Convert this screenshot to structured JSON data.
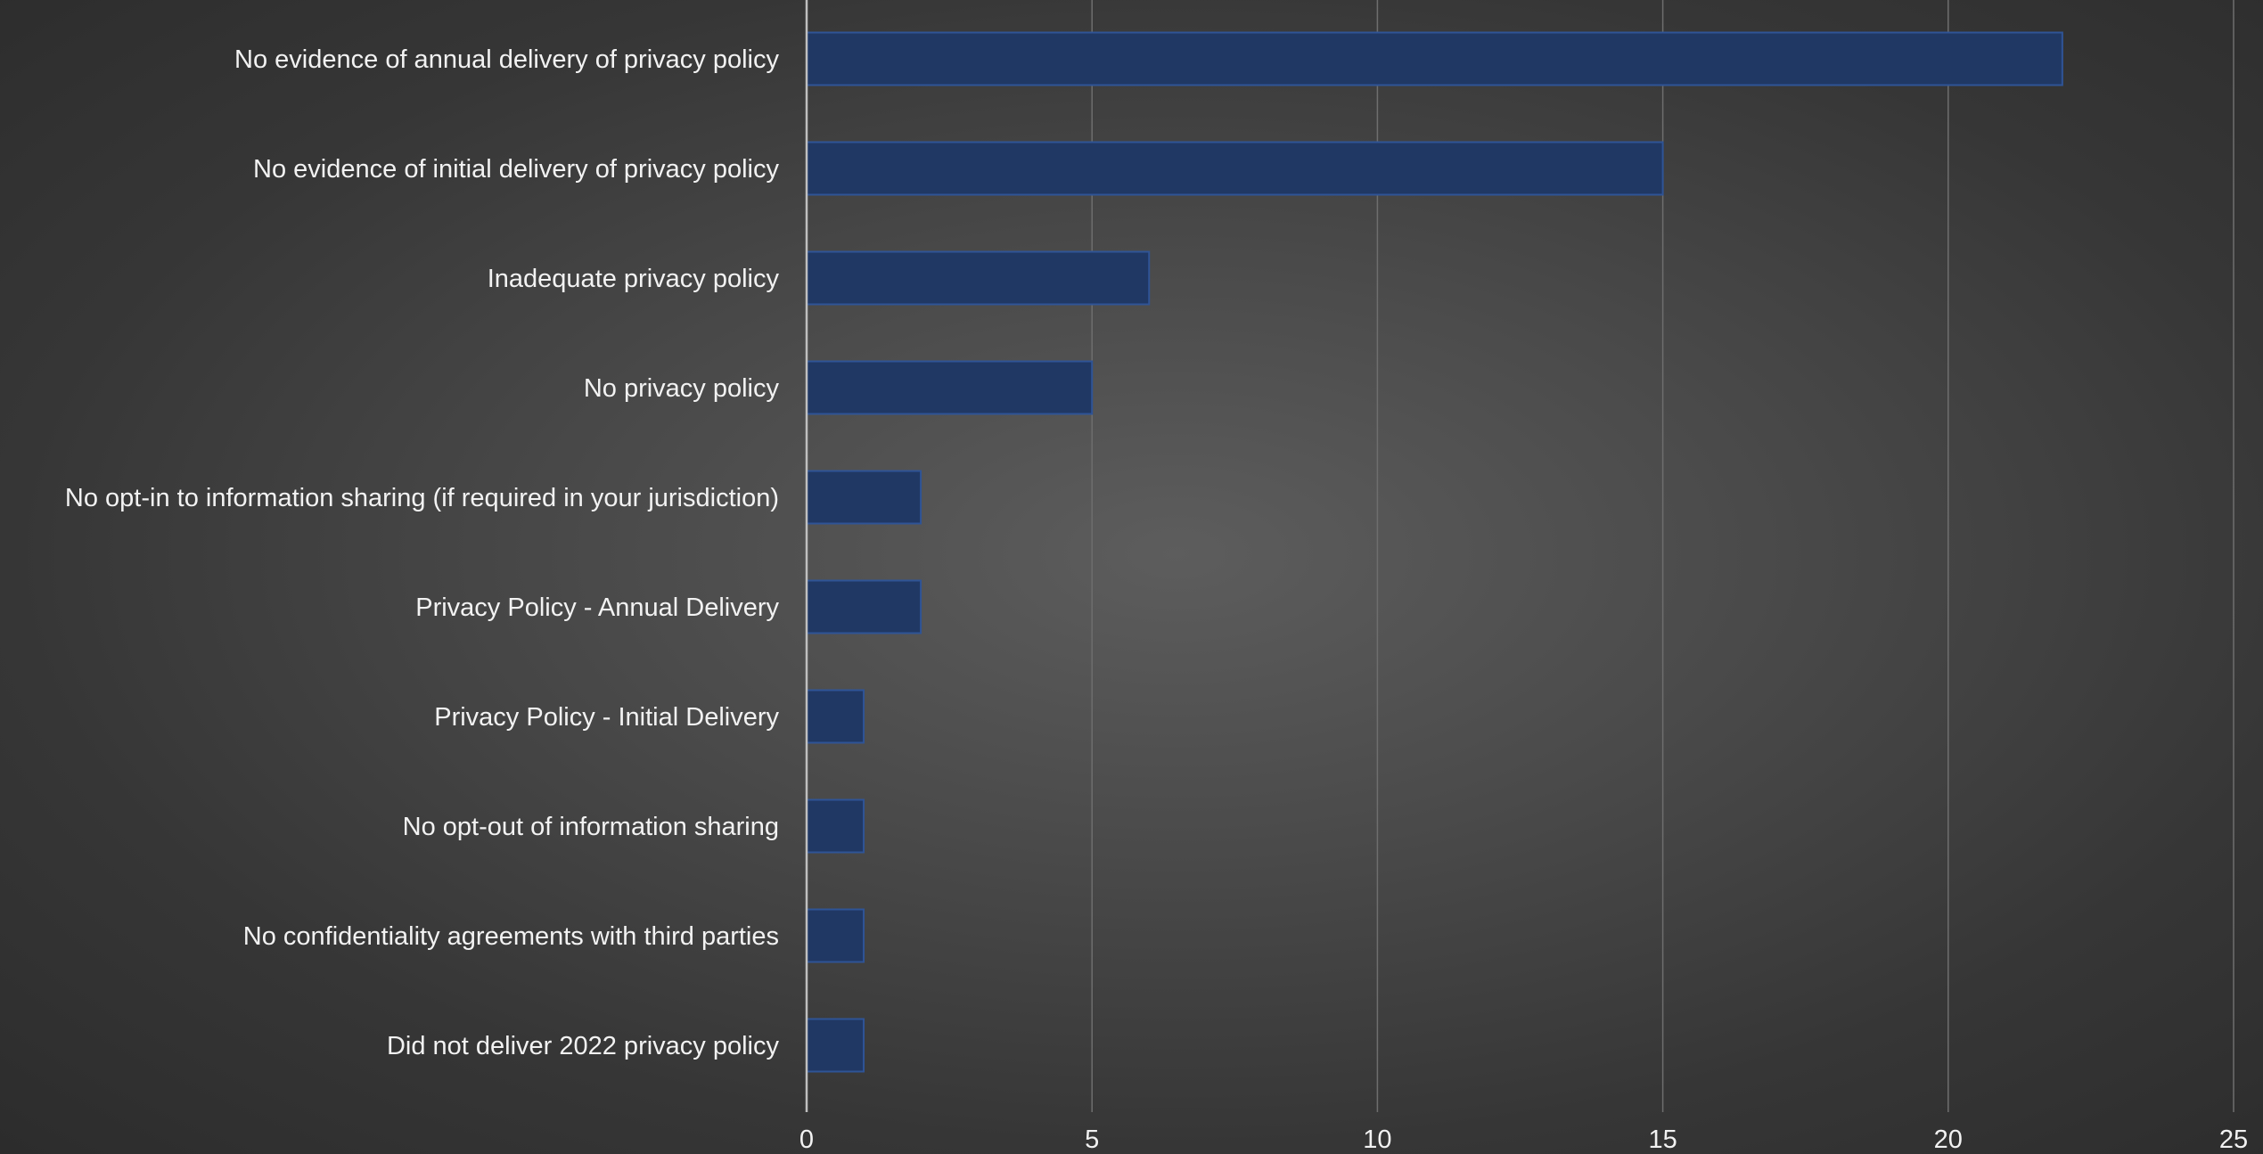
{
  "chart_data": {
    "type": "bar",
    "orientation": "horizontal",
    "title": "",
    "xlabel": "",
    "ylabel": "",
    "categories": [
      "No evidence of annual delivery of privacy policy",
      "No evidence of initial delivery of privacy policy",
      "Inadequate privacy policy",
      "No privacy policy",
      "No opt-in to information sharing (if required in your jurisdiction)",
      "Privacy Policy - Annual Delivery",
      "Privacy Policy - Initial Delivery",
      "No opt-out of information sharing",
      "No confidentiality agreements with third parties",
      "Did not deliver 2022 privacy policy"
    ],
    "values": [
      22,
      15,
      6,
      5,
      2,
      2,
      1,
      1,
      1,
      1
    ],
    "xlim": [
      0,
      25
    ],
    "x_ticks": [
      "0",
      "5",
      "10",
      "15",
      "20",
      "25"
    ],
    "grid": "vertical",
    "legend": "none",
    "colors": {
      "bar_fill": "#203864",
      "bar_stroke": "#2f5496",
      "grid": "#6e6e6e",
      "axis": "#bfbfbf",
      "text": "#f2f2f2"
    }
  }
}
